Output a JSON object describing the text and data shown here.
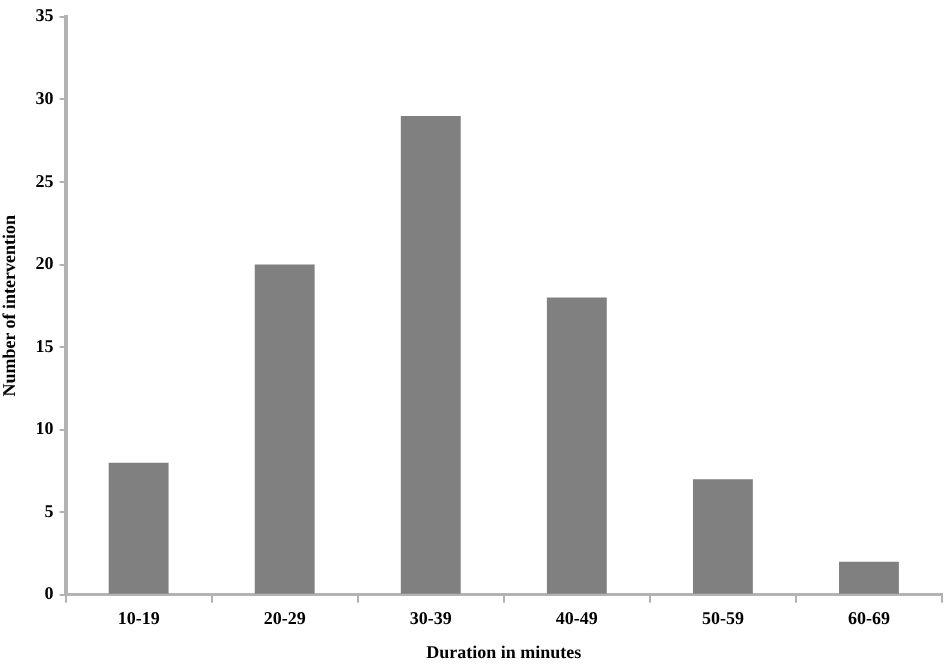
{
  "chart_data": {
    "type": "bar",
    "categories": [
      "10-19",
      "20-29",
      "30-39",
      "40-49",
      "50-59",
      "60-69"
    ],
    "values": [
      8,
      20,
      29,
      18,
      7,
      2
    ],
    "color": "#808080",
    "xlabel": "Duration in minutes",
    "ylabel": "Number of intervention",
    "ylim": [
      0,
      35
    ],
    "yticks": [
      0,
      5,
      10,
      15,
      20,
      25,
      30,
      35
    ]
  }
}
